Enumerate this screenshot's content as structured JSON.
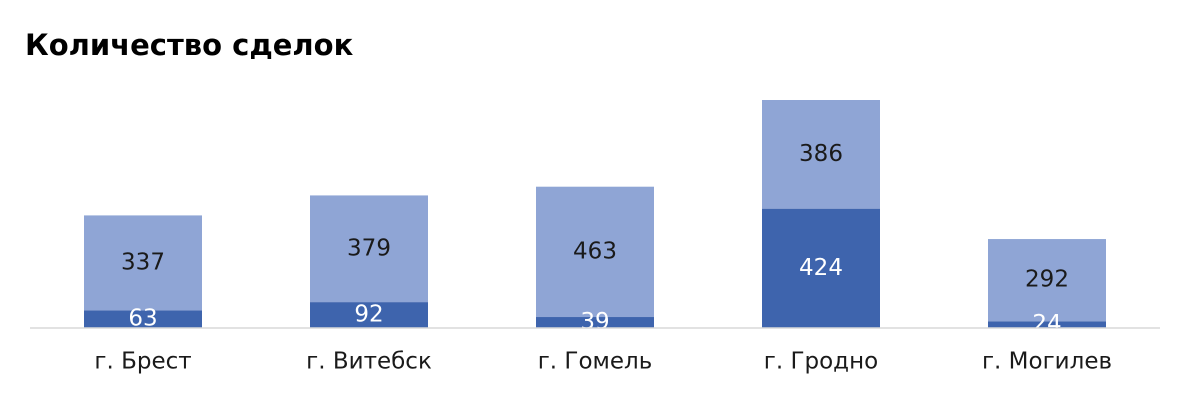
{
  "chart_data": {
    "type": "stacked-bar",
    "title": "Количество сделок",
    "categories": [
      "г. Брест",
      "г. Витебск",
      "г. Гомель",
      "г. Гродно",
      "г. Могилев"
    ],
    "series": [
      {
        "color": "#3e64ad",
        "label_color": "#ffffff",
        "values": [
          63,
          92,
          39,
          424,
          24
        ]
      },
      {
        "color": "#8fa5d5",
        "label_color": "#1a1a1a",
        "values": [
          337,
          379,
          463,
          386,
          292
        ]
      }
    ]
  }
}
